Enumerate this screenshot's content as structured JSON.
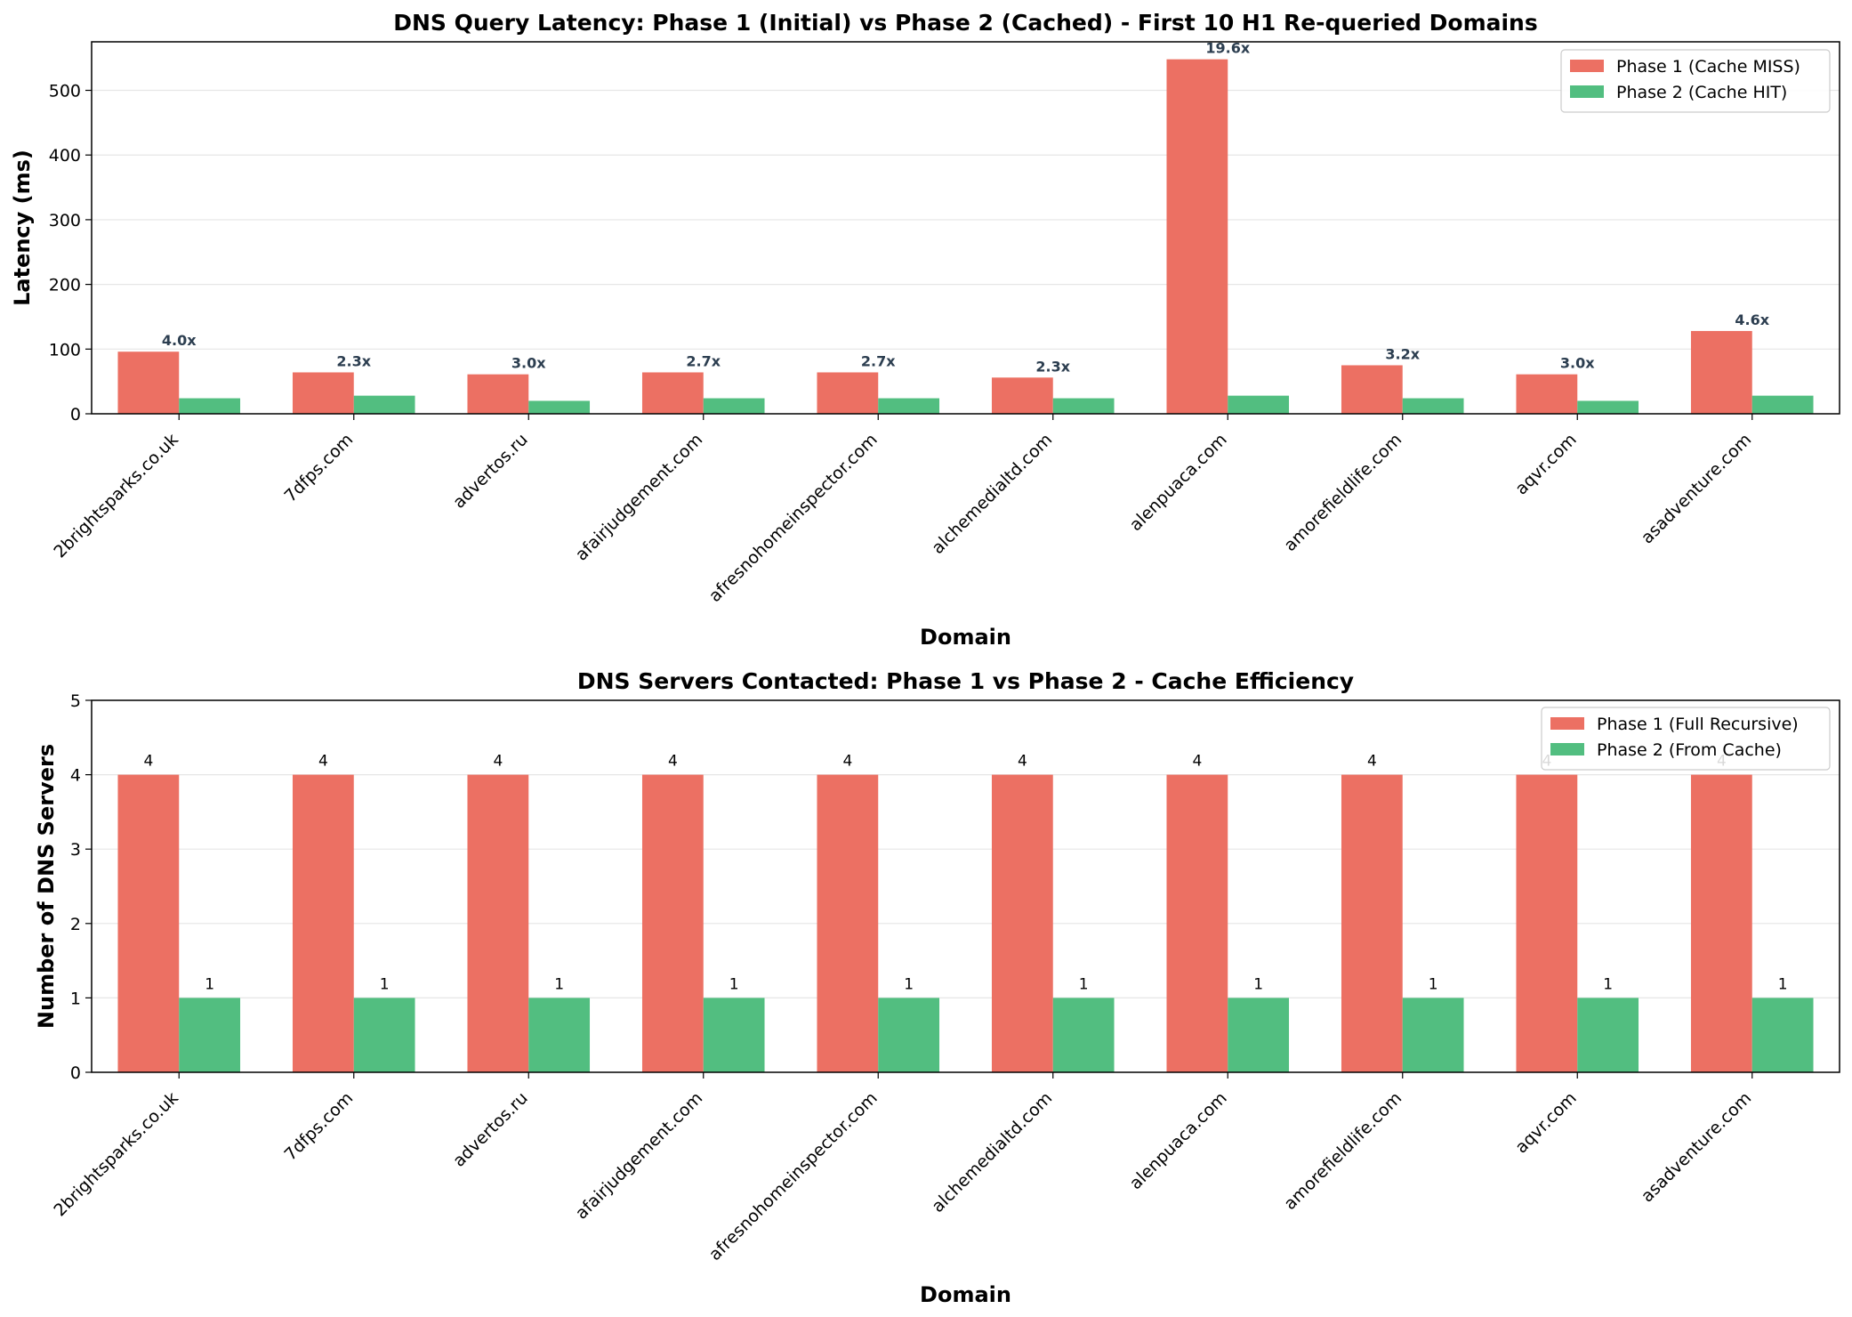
{
  "chart_data": [
    {
      "type": "bar",
      "title": "DNS Query Latency: Phase 1 (Initial) vs Phase 2 (Cached) - First 10 H1 Re-queried Domains",
      "xlabel": "Domain",
      "ylabel": "Latency (ms)",
      "ylim": [
        0,
        575
      ],
      "yticks": [
        0,
        100,
        200,
        300,
        400,
        500
      ],
      "grid": "y",
      "legend": "top-right",
      "categories": [
        "2brightsparks.co.uk",
        "7dfps.com",
        "advertos.ru",
        "afairjudgement.com",
        "afresnohomeinspector.com",
        "alchemedialtd.com",
        "alenpuaca.com",
        "amorefieldlife.com",
        "aqvr.com",
        "asadventure.com"
      ],
      "series": [
        {
          "name": "Phase 1 (Cache MISS)",
          "color": "#e74c3c",
          "values": [
            96,
            64,
            61,
            64,
            64,
            56,
            548,
            75,
            61,
            128
          ]
        },
        {
          "name": "Phase 2 (Cache HIT)",
          "color": "#27ae60",
          "values": [
            24,
            28,
            20,
            24,
            24,
            24,
            28,
            24,
            20,
            28
          ]
        }
      ],
      "annotations": [
        "4.0x",
        "2.3x",
        "3.0x",
        "2.7x",
        "2.7x",
        "2.3x",
        "19.6x",
        "3.2x",
        "3.0x",
        "4.6x"
      ]
    },
    {
      "type": "bar",
      "title": "DNS Servers Contacted: Phase 1 vs Phase 2 - Cache Efficiency",
      "xlabel": "Domain",
      "ylabel": "Number of DNS Servers",
      "ylim": [
        0,
        5
      ],
      "yticks": [
        0,
        1,
        2,
        3,
        4,
        5
      ],
      "grid": "y",
      "legend": "top-right",
      "categories": [
        "2brightsparks.co.uk",
        "7dfps.com",
        "advertos.ru",
        "afairjudgement.com",
        "afresnohomeinspector.com",
        "alchemedialtd.com",
        "alenpuaca.com",
        "amorefieldlife.com",
        "aqvr.com",
        "asadventure.com"
      ],
      "series": [
        {
          "name": "Phase 1 (Full Recursive)",
          "color": "#e74c3c",
          "values": [
            4,
            4,
            4,
            4,
            4,
            4,
            4,
            4,
            4,
            4
          ]
        },
        {
          "name": "Phase 2 (From Cache)",
          "color": "#27ae60",
          "values": [
            1,
            1,
            1,
            1,
            1,
            1,
            1,
            1,
            1,
            1
          ]
        }
      ],
      "value_labels": true
    }
  ]
}
